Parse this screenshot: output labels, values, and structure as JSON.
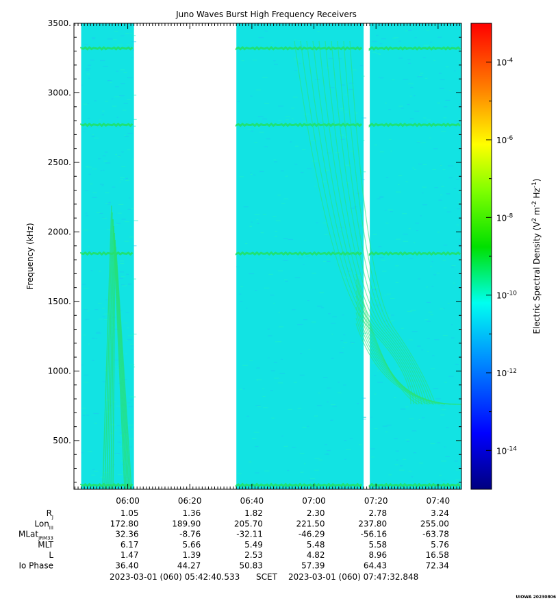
{
  "chart_data": {
    "type": "heatmap",
    "title": "Juno Waves Burst High Frequency Receivers",
    "ylabel": "Frequency (kHz)",
    "ylim": [
      150,
      3500
    ],
    "y_ticks": [
      {
        "value": 500,
        "label": "500."
      },
      {
        "value": 1000,
        "label": "1000."
      },
      {
        "value": 1500,
        "label": "1500."
      },
      {
        "value": 2000,
        "label": "2000."
      },
      {
        "value": 2500,
        "label": "2500."
      },
      {
        "value": 3000,
        "label": "3000."
      },
      {
        "value": 3500,
        "label": "3500."
      }
    ],
    "x_start": "05:42:40",
    "x_end": "07:47:32",
    "x_ticks": [
      "06:00",
      "06:20",
      "06:40",
      "07:00",
      "07:20",
      "07:40"
    ],
    "data_intervals": [
      {
        "start": "05:45",
        "end": "06:02"
      },
      {
        "start": "06:35",
        "end": "07:16"
      },
      {
        "start": "07:18",
        "end": "07:53"
      }
    ],
    "persistent_lines_khz": [
      3320,
      2770,
      1845,
      180
    ],
    "colorbar": {
      "label": "Electric Spectral Density (V2 m-2 Hz-1)",
      "scale": "log",
      "range_exp": [
        -15,
        -3
      ],
      "tick_exps": [
        -14,
        -12,
        -10,
        -8,
        -6,
        -4
      ]
    },
    "ephemeris": {
      "rows": [
        {
          "label": "R",
          "sub": "J",
          "values": [
            "1.05",
            "1.36",
            "1.82",
            "2.30",
            "2.78",
            "3.24"
          ]
        },
        {
          "label": "Lon",
          "sub": "III",
          "values": [
            "172.80",
            "189.90",
            "205.70",
            "221.50",
            "237.80",
            "255.00"
          ]
        },
        {
          "label": "MLat",
          "sub": "JRM33",
          "values": [
            "32.36",
            "-8.76",
            "-32.11",
            "-46.29",
            "-56.16",
            "-63.78"
          ]
        },
        {
          "label": "MLT",
          "sub": "",
          "values": [
            "6.17",
            "5.66",
            "5.49",
            "5.48",
            "5.58",
            "5.76"
          ]
        },
        {
          "label": "L",
          "sub": "",
          "values": [
            "1.47",
            "1.39",
            "2.53",
            "4.82",
            "8.96",
            "16.58"
          ]
        },
        {
          "label": "Io Phase",
          "sub": "",
          "values": [
            "36.40",
            "44.27",
            "50.83",
            "57.39",
            "64.43",
            "72.34"
          ]
        }
      ]
    },
    "time_range": {
      "start": "2023-03-01 (060) 05:42:40.533",
      "scet": "SCET",
      "end": "2023-03-01 (060) 07:47:32.848"
    },
    "footer_tag": "UIOWA 20230806"
  }
}
